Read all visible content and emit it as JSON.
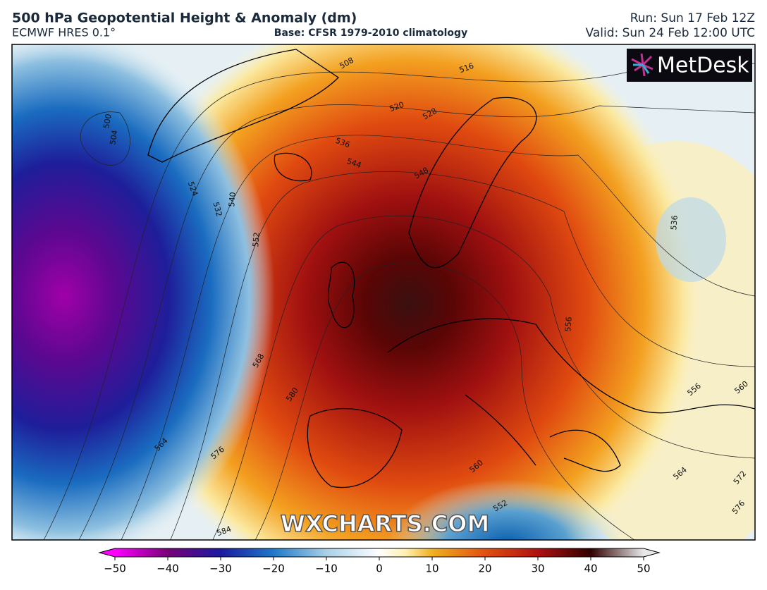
{
  "header": {
    "title": "500 hPa Geopotential Height & Anomaly (dm)",
    "model": "ECMWF HRES 0.1°",
    "base": "Base: CFSR 1979-2010 climatology",
    "run": "Run: Sun 17 Feb 12Z",
    "valid": "Valid: Sun 24 Feb 12:00 UTC"
  },
  "logo": "MetDesk",
  "watermark": "WXCHARTS.COM",
  "contour_labels": [
    508,
    516,
    520,
    528,
    536,
    544,
    548,
    500,
    504,
    524,
    532,
    540,
    552,
    536,
    556,
    568,
    580,
    564,
    576,
    584,
    560,
    552,
    564,
    556,
    560,
    572,
    576
  ],
  "colorbar": {
    "range": [
      -50,
      50
    ],
    "ticks": [
      {
        "value": -50,
        "label": "−50"
      },
      {
        "value": -40,
        "label": "−40"
      },
      {
        "value": -30,
        "label": "−30"
      },
      {
        "value": -20,
        "label": "−20"
      },
      {
        "value": -10,
        "label": "−10"
      },
      0,
      10,
      20,
      30,
      40,
      50
    ]
  }
}
